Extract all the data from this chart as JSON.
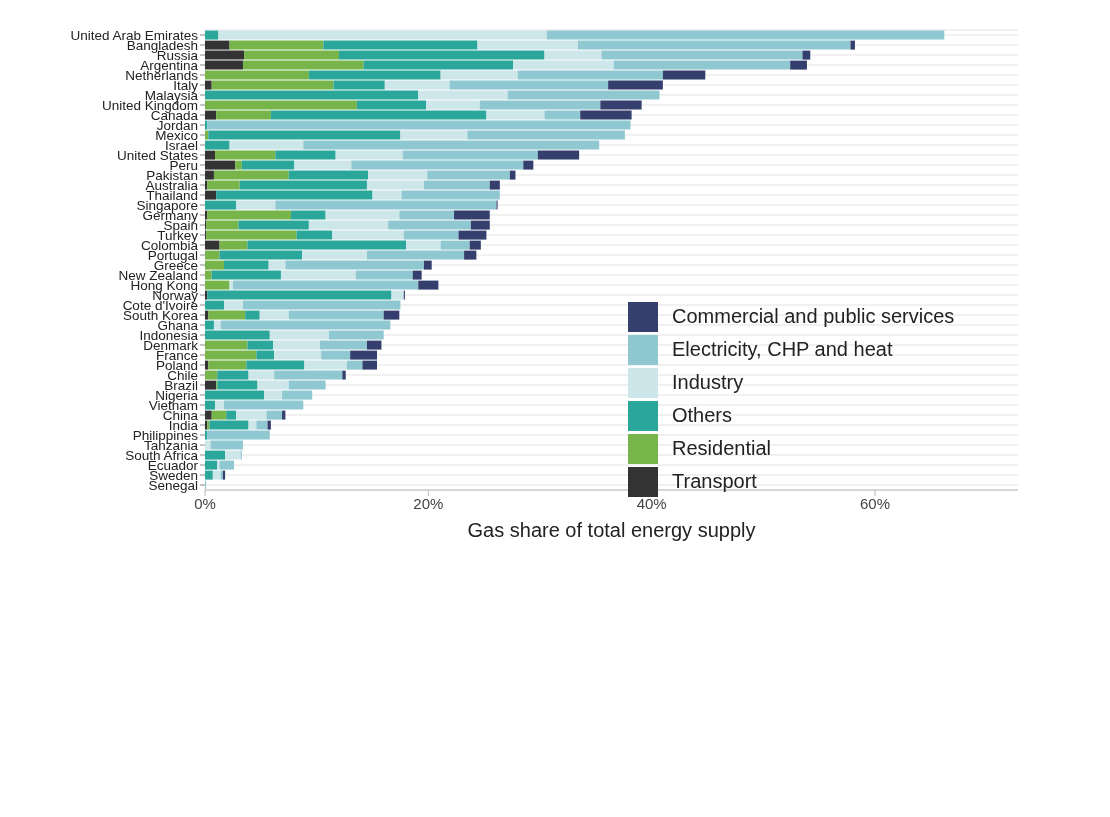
{
  "chart_data": {
    "type": "bar",
    "orientation": "horizontal",
    "stacked": true,
    "xlabel": "Gas share of total energy supply",
    "categories": [
      "United Arab Emirates",
      "Bangladesh",
      "Russia",
      "Argentina",
      "Netherlands",
      "Italy",
      "Malaysia",
      "United Kingdom",
      "Canada",
      "Jordan",
      "Mexico",
      "Israel",
      "United States",
      "Peru",
      "Pakistan",
      "Australia",
      "Thailand",
      "Singapore",
      "Germany",
      "Spain",
      "Turkey",
      "Colombia",
      "Portugal",
      "Greece",
      "New Zealand",
      "Hong Kong",
      "Norway",
      "Cote d'Ivoire",
      "South Korea",
      "Ghana",
      "Indonesia",
      "Denmark",
      "France",
      "Poland",
      "Chile",
      "Brazil",
      "Nigeria",
      "Vietnam",
      "China",
      "India",
      "Philippines",
      "Tanzania",
      "South Africa",
      "Ecuador",
      "Sweden",
      "Senegal"
    ],
    "series": [
      {
        "name": "Transport",
        "color": "#333333",
        "values": [
          0,
          2.2,
          3.5,
          3.4,
          0,
          0.6,
          0,
          0,
          1.0,
          0,
          0,
          0,
          0.9,
          2.7,
          0.8,
          0.2,
          1.0,
          0,
          0.2,
          0.1,
          0.1,
          1.3,
          0,
          0,
          0,
          0,
          0.2,
          0,
          0.3,
          0,
          0,
          0,
          0,
          0.3,
          0,
          1.0,
          0,
          0,
          0.6,
          0.2,
          0,
          0,
          0,
          0,
          0,
          0
        ]
      },
      {
        "name": "Residential",
        "color": "#77b54a",
        "values": [
          0,
          8.4,
          8.5,
          10.8,
          9.3,
          10.9,
          0,
          13.6,
          4.9,
          0,
          0.3,
          0,
          5.4,
          0.6,
          6.7,
          2.9,
          0,
          0,
          7.5,
          2.9,
          8.1,
          2.5,
          1.3,
          1.7,
          0.6,
          2.2,
          0,
          0,
          3.3,
          0,
          0,
          3.8,
          4.6,
          3.4,
          1.1,
          0.1,
          0,
          0,
          1.3,
          0.2,
          0,
          0,
          0,
          0,
          0,
          0
        ]
      },
      {
        "name": "Others",
        "color": "#2aa69a",
        "values": [
          1.2,
          13.8,
          18.4,
          13.4,
          11.8,
          4.6,
          19.1,
          6.2,
          19.3,
          0.2,
          17.2,
          2.2,
          5.4,
          4.7,
          7.1,
          11.4,
          14.0,
          2.8,
          3.1,
          6.3,
          3.2,
          14.2,
          7.4,
          4.0,
          6.2,
          0,
          16.5,
          1.7,
          1.3,
          0.8,
          5.8,
          2.3,
          1.6,
          5.2,
          2.8,
          3.6,
          5.3,
          0.9,
          0.9,
          3.5,
          0.2,
          0,
          1.8,
          1.1,
          0.7,
          0
        ]
      },
      {
        "name": "Industry",
        "color": "#cde6ea",
        "values": [
          29.4,
          9.0,
          5.1,
          9.0,
          6.9,
          5.8,
          8.0,
          4.8,
          5.2,
          0,
          6.0,
          6.6,
          6.0,
          5.1,
          5.3,
          5.1,
          2.6,
          3.5,
          6.6,
          7.1,
          6.4,
          3.1,
          5.8,
          1.5,
          6.7,
          0.3,
          1.1,
          1.7,
          2.6,
          0.6,
          5.3,
          4.2,
          4.2,
          3.8,
          2.3,
          2.8,
          1.6,
          0.8,
          2.7,
          0.7,
          0,
          0.5,
          1.4,
          0.2,
          0.7,
          0
        ]
      },
      {
        "name": "Electricity, CHP and heat",
        "color": "#8fc8d0",
        "values": [
          35.6,
          24.4,
          18.0,
          15.8,
          13.0,
          14.2,
          13.6,
          10.8,
          3.2,
          37.9,
          14.1,
          26.5,
          12.1,
          15.4,
          7.4,
          5.9,
          8.8,
          19.8,
          4.9,
          7.4,
          4.9,
          2.6,
          8.7,
          12.4,
          5.1,
          16.6,
          0,
          14.1,
          8.5,
          15.2,
          4.9,
          4.2,
          2.6,
          1.4,
          6.1,
          3.3,
          2.7,
          7.1,
          1.4,
          1.0,
          5.6,
          2.9,
          0.1,
          1.3,
          0.2,
          0.1
        ]
      },
      {
        "name": "Commercial and public services",
        "color": "#343f6e",
        "values": [
          0,
          0.4,
          0.7,
          1.5,
          3.8,
          4.9,
          0,
          3.7,
          4.6,
          0,
          0,
          0,
          3.7,
          0.9,
          0.5,
          0.9,
          0,
          0.1,
          3.2,
          1.7,
          2.5,
          1.0,
          1.1,
          0.7,
          0.8,
          1.8,
          0.1,
          0,
          1.4,
          0,
          0,
          1.3,
          2.4,
          1.3,
          0.3,
          0,
          0,
          0,
          0.3,
          0.3,
          0,
          0,
          0,
          0,
          0.2,
          0
        ]
      }
    ],
    "xlim": [
      0,
      72.8
    ],
    "xticks": [
      {
        "value": 0,
        "label": "0%"
      },
      {
        "value": 20,
        "label": "20%"
      },
      {
        "value": 40,
        "label": "40%"
      },
      {
        "value": 60,
        "label": "60%"
      }
    ],
    "grid": "y",
    "legend": "right"
  }
}
